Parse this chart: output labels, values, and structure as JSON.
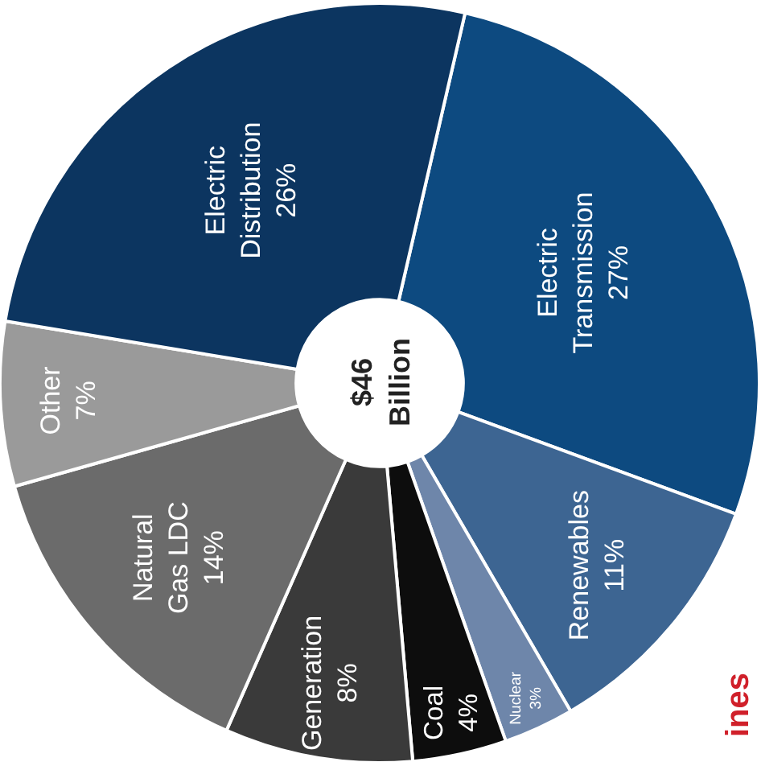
{
  "chart_data": {
    "type": "donut",
    "categories": [
      "Electric Transmission",
      "Renewables",
      "Nuclear",
      "Coal",
      "Generation",
      "Natural Gas LDC",
      "Other",
      "Electric Distribution"
    ],
    "values": [
      27,
      11,
      3,
      4,
      8,
      14,
      7,
      26
    ],
    "value_labels": [
      "27%",
      "11%",
      "3%",
      "4%",
      "8%",
      "14%",
      "7%",
      "26%"
    ],
    "colors": [
      "#0d4a80",
      "#3d6592",
      "#6e86aa",
      "#0d0d0d",
      "#3a3a3a",
      "#6b6b6b",
      "#9a9a9a",
      "#0c3560"
    ],
    "annotations": [
      "$46 Billion",
      "ines"
    ]
  }
}
